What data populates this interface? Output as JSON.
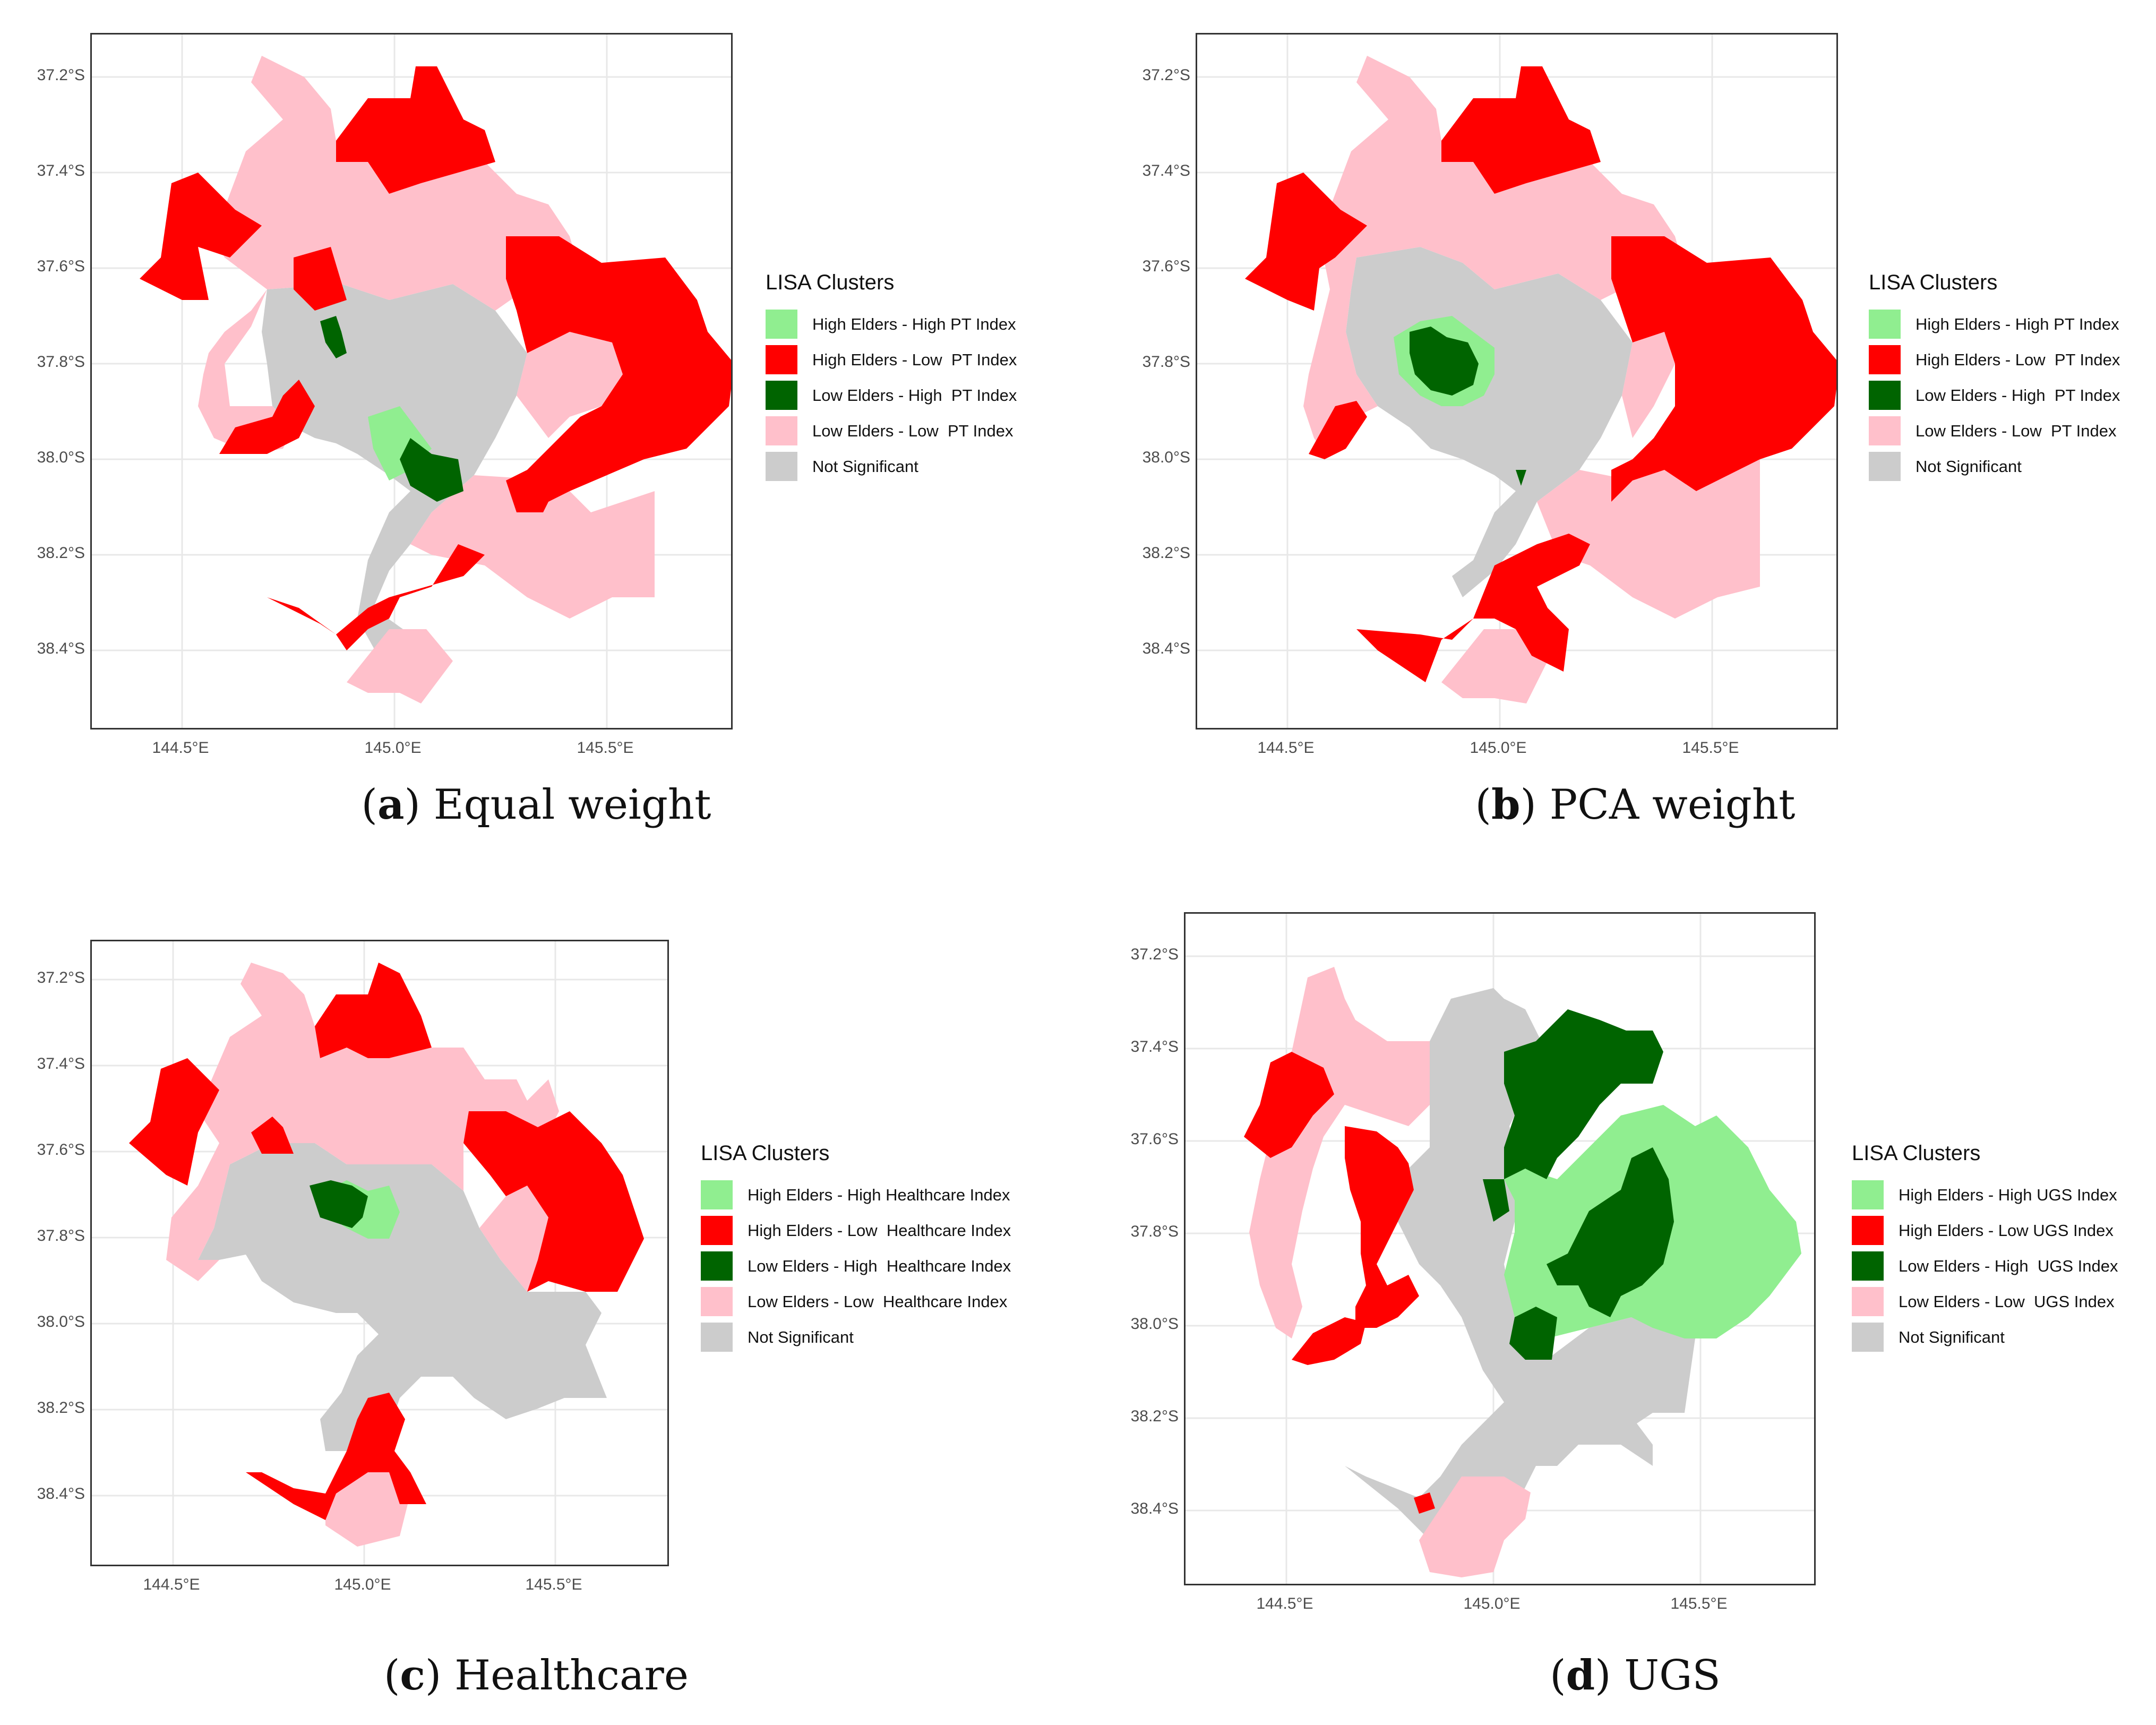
{
  "colors": {
    "hh": "#90ee90",
    "hl": "#ff0000",
    "lh": "#006400",
    "ll": "#ffc0cb",
    "ns": "#cccccc"
  },
  "axes": {
    "y_ticks": [
      "37.2°S",
      "37.4°S",
      "37.6°S",
      "37.8°S",
      "38.0°S",
      "38.2°S",
      "38.4°S"
    ],
    "x_ticks": [
      "144.5°E",
      "145.0°E",
      "145.5°E"
    ]
  },
  "panels": [
    {
      "id": "a",
      "caption_letter": "a",
      "caption_text": "Equal weight",
      "legend_title": "LISA Clusters",
      "legend_items": [
        "High Elders - High PT Index",
        "High Elders - Low  PT Index",
        "Low Elders - High  PT Index",
        "Low Elders - Low  PT Index",
        "Not Significant"
      ]
    },
    {
      "id": "b",
      "caption_letter": "b",
      "caption_text": "PCA weight",
      "legend_title": "LISA Clusters",
      "legend_items": [
        "High Elders - High PT Index",
        "High Elders - Low  PT Index",
        "Low Elders - High  PT Index",
        "Low Elders - Low  PT Index",
        "Not Significant"
      ]
    },
    {
      "id": "c",
      "caption_letter": "c",
      "caption_text": "Healthcare",
      "legend_title": "LISA Clusters",
      "legend_items": [
        "High Elders - High Healthcare Index",
        "High Elders - Low  Healthcare Index",
        "Low Elders - High  Healthcare Index",
        "Low Elders - Low  Healthcare Index",
        "Not Significant"
      ]
    },
    {
      "id": "d",
      "caption_letter": "d",
      "caption_text": "UGS",
      "legend_title": "LISA Clusters",
      "legend_items": [
        "High Elders - High UGS Index",
        "High Elders - Low UGS Index",
        "Low Elders - High  UGS Index",
        "Low Elders - Low  UGS Index",
        "Not Significant"
      ]
    }
  ]
}
